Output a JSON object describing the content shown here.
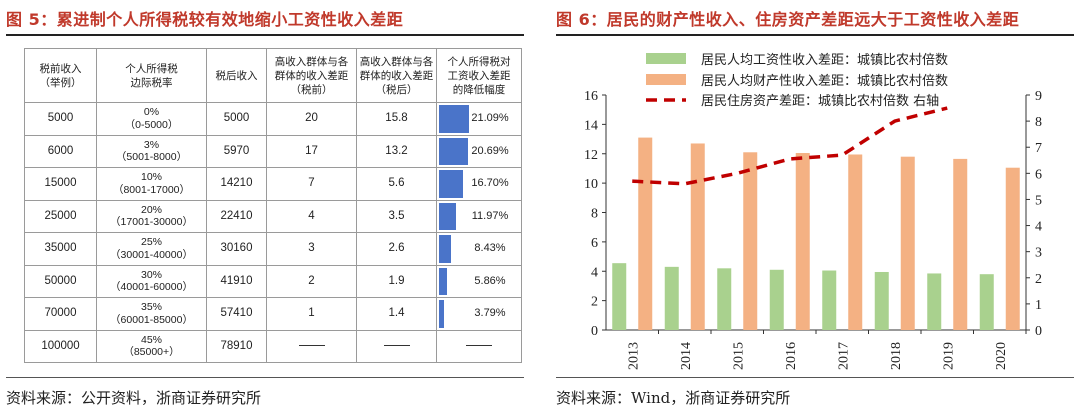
{
  "left": {
    "title": "图 5：累进制个人所得税较有效地缩小工资性收入差距",
    "source": "资料来源：公开资料，浙商证券研究所",
    "headers": [
      [
        "税前收入",
        "（举例）"
      ],
      [
        "个人所得税",
        "边际税率"
      ],
      [
        "税后收入"
      ],
      [
        "高收入群体与各",
        "群体的收入差距",
        "（税前）"
      ],
      [
        "高收入群体与各",
        "群体的收入差距",
        "（税后）"
      ],
      [
        "个人所得税对",
        "工资收入差距",
        "的降低幅度"
      ]
    ],
    "rows": [
      {
        "pre": "5000",
        "rate": "0%",
        "bracket": "（0-5000）",
        "post": "5000",
        "gap_pre": "20",
        "gap_post": "15.8",
        "reduction": "21.09%",
        "reduction_value": 21.09
      },
      {
        "pre": "6000",
        "rate": "3%",
        "bracket": "（5001-8000）",
        "post": "5970",
        "gap_pre": "17",
        "gap_post": "13.2",
        "reduction": "20.69%",
        "reduction_value": 20.69
      },
      {
        "pre": "15000",
        "rate": "10%",
        "bracket": "（8001-17000）",
        "post": "14210",
        "gap_pre": "7",
        "gap_post": "5.6",
        "reduction": "16.70%",
        "reduction_value": 16.7
      },
      {
        "pre": "25000",
        "rate": "20%",
        "bracket": "（17001-30000）",
        "post": "22410",
        "gap_pre": "4",
        "gap_post": "3.5",
        "reduction": "11.97%",
        "reduction_value": 11.97
      },
      {
        "pre": "35000",
        "rate": "25%",
        "bracket": "（30001-40000）",
        "post": "30160",
        "gap_pre": "3",
        "gap_post": "2.6",
        "reduction": "8.43%",
        "reduction_value": 8.43
      },
      {
        "pre": "50000",
        "rate": "30%",
        "bracket": "（40001-60000）",
        "post": "41910",
        "gap_pre": "2",
        "gap_post": "1.9",
        "reduction": "5.86%",
        "reduction_value": 5.86
      },
      {
        "pre": "70000",
        "rate": "35%",
        "bracket": "（60001-85000）",
        "post": "57410",
        "gap_pre": "1",
        "gap_post": "1.4",
        "reduction": "3.79%",
        "reduction_value": 3.79
      },
      {
        "pre": "100000",
        "rate": "45%",
        "bracket": "（85000+）",
        "post": "78910",
        "gap_pre": null,
        "gap_post": null,
        "reduction": null,
        "reduction_value": null
      }
    ],
    "bar_color": "#4a74c9"
  },
  "right": {
    "title": "图 6：居民的财产性收入、住房资产差距远大于工资性收入差距",
    "source": "资料来源：Wind，浙商证券研究所"
  },
  "chart_data": {
    "type": "bar",
    "categories": [
      "2013",
      "2014",
      "2015",
      "2016",
      "2017",
      "2018",
      "2019",
      "2020"
    ],
    "series": [
      {
        "name": "居民人均工资性收入差距：城镇比农村倍数",
        "type": "bar",
        "axis": "left",
        "color": "#a9d18e",
        "values": [
          4.55,
          4.3,
          4.2,
          4.1,
          4.05,
          3.95,
          3.85,
          3.8
        ]
      },
      {
        "name": "居民人均财产性收入差距：城镇比农村倍数",
        "type": "bar",
        "axis": "left",
        "color": "#f4b183",
        "values": [
          13.1,
          12.7,
          12.1,
          12.05,
          11.95,
          11.8,
          11.65,
          11.05
        ]
      },
      {
        "name": "居民住房资产差距：城镇比农村倍数 右轴",
        "type": "line",
        "axis": "right",
        "style": "dashed",
        "color": "#c00000",
        "values": [
          5.7,
          5.6,
          6.0,
          6.55,
          6.7,
          8.0,
          8.5,
          null
        ]
      }
    ],
    "y_left": {
      "min": 0,
      "max": 16,
      "ticks": [
        0,
        2,
        4,
        6,
        8,
        10,
        12,
        14,
        16
      ]
    },
    "y_right": {
      "min": 0,
      "max": 9,
      "ticks": [
        0,
        1,
        2,
        3,
        4,
        5,
        6,
        7,
        8,
        9
      ]
    },
    "legend_position": "top-left",
    "title": "图 6：居民的财产性收入、住房资产差距远大于工资性收入差距"
  }
}
